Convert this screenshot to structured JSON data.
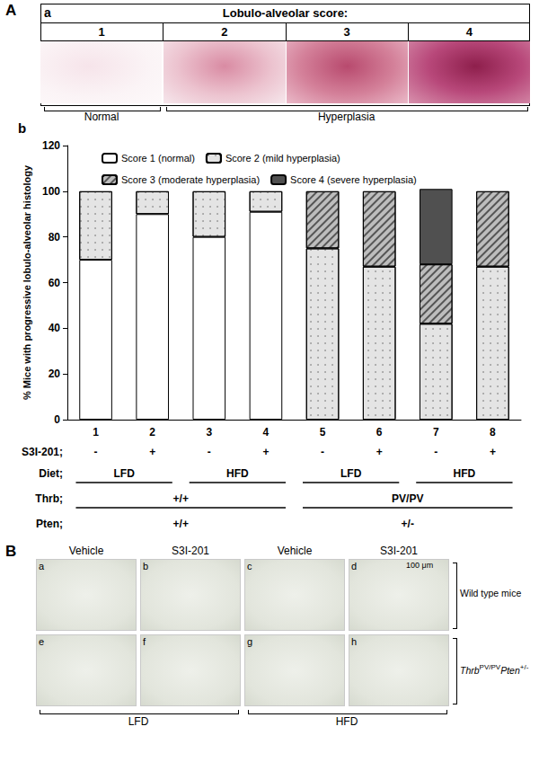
{
  "figure": {
    "panel_A": {
      "label": "A",
      "sub_a": {
        "label": "a",
        "header": "Lobulo-alveolar score:",
        "scores": [
          1,
          2,
          3,
          4
        ],
        "groups": [
          "Normal",
          "Hyperplasia",
          "Hyperplasia",
          "Hyperplasia"
        ]
      },
      "sub_b": {
        "label": "b"
      }
    },
    "panel_B": {
      "label": "B",
      "columns": [
        "Vehicle",
        "S3I-201",
        "Vehicle",
        "S3I-201"
      ],
      "image_labels": [
        [
          "a",
          "b",
          "c",
          "d"
        ],
        [
          "e",
          "f",
          "g",
          "h"
        ]
      ],
      "scale_bar": "100 μm",
      "rows": [
        [
          {
            "text": "Wild type mice"
          }
        ],
        [
          {
            "text": "Thrb",
            "italic": true
          },
          {
            "text": "PV/PV",
            "sup": true
          },
          {
            "text": "Pten",
            "italic": true
          },
          {
            "text": "+/-",
            "sup": true
          }
        ]
      ],
      "diets": [
        "LFD",
        "LFD",
        "HFD",
        "HFD"
      ]
    }
  },
  "chart_data": {
    "type": "bar",
    "stacked": true,
    "y_label": "% Mice with progressive lobulo-alveolar histology",
    "categories": [
      "1",
      "2",
      "3",
      "4",
      "5",
      "6",
      "7",
      "8"
    ],
    "series": [
      {
        "name": "Score 1 (normal)",
        "color": "#ffffff",
        "values": [
          70,
          90,
          80,
          91,
          null,
          null,
          null,
          null
        ]
      },
      {
        "name": "Score 2 (mild hyperplasia)",
        "color": "#e4e4e4",
        "values": [
          30,
          10,
          20,
          9,
          75,
          67,
          42,
          67
        ]
      },
      {
        "name": "Score 3 (moderate hyperplasia)",
        "color": "#bdbdbd",
        "values": [
          null,
          null,
          null,
          null,
          25,
          33,
          26,
          33
        ]
      },
      {
        "name": "Score 4 (severe hyperplasia)",
        "color": "#505050",
        "values": [
          null,
          null,
          null,
          null,
          null,
          null,
          33,
          null
        ]
      }
    ],
    "ylim": [
      0,
      120
    ],
    "yticks": [
      0,
      20,
      40,
      60,
      80,
      100,
      120
    ],
    "grid": false,
    "legend": "top",
    "x_rows": [
      {
        "label": "S3I-201;",
        "values": [
          "-",
          "+",
          "-",
          "+",
          "-",
          "+",
          "-",
          "+"
        ]
      },
      {
        "label": "Diet;",
        "values": [
          "LFD",
          "LFD",
          "HFD",
          "HFD",
          "LFD",
          "LFD",
          "HFD",
          "HFD"
        ]
      },
      {
        "label": "Thrb;",
        "values": [
          "+/+",
          "+/+",
          "+/+",
          "+/+",
          "PV/PV",
          "PV/PV",
          "PV/PV",
          "PV/PV"
        ]
      },
      {
        "label": "Pten;",
        "values": [
          "+/+",
          "+/+",
          "+/+",
          "+/+",
          "+/-",
          "+/-",
          "+/-",
          "+/-"
        ]
      }
    ]
  }
}
